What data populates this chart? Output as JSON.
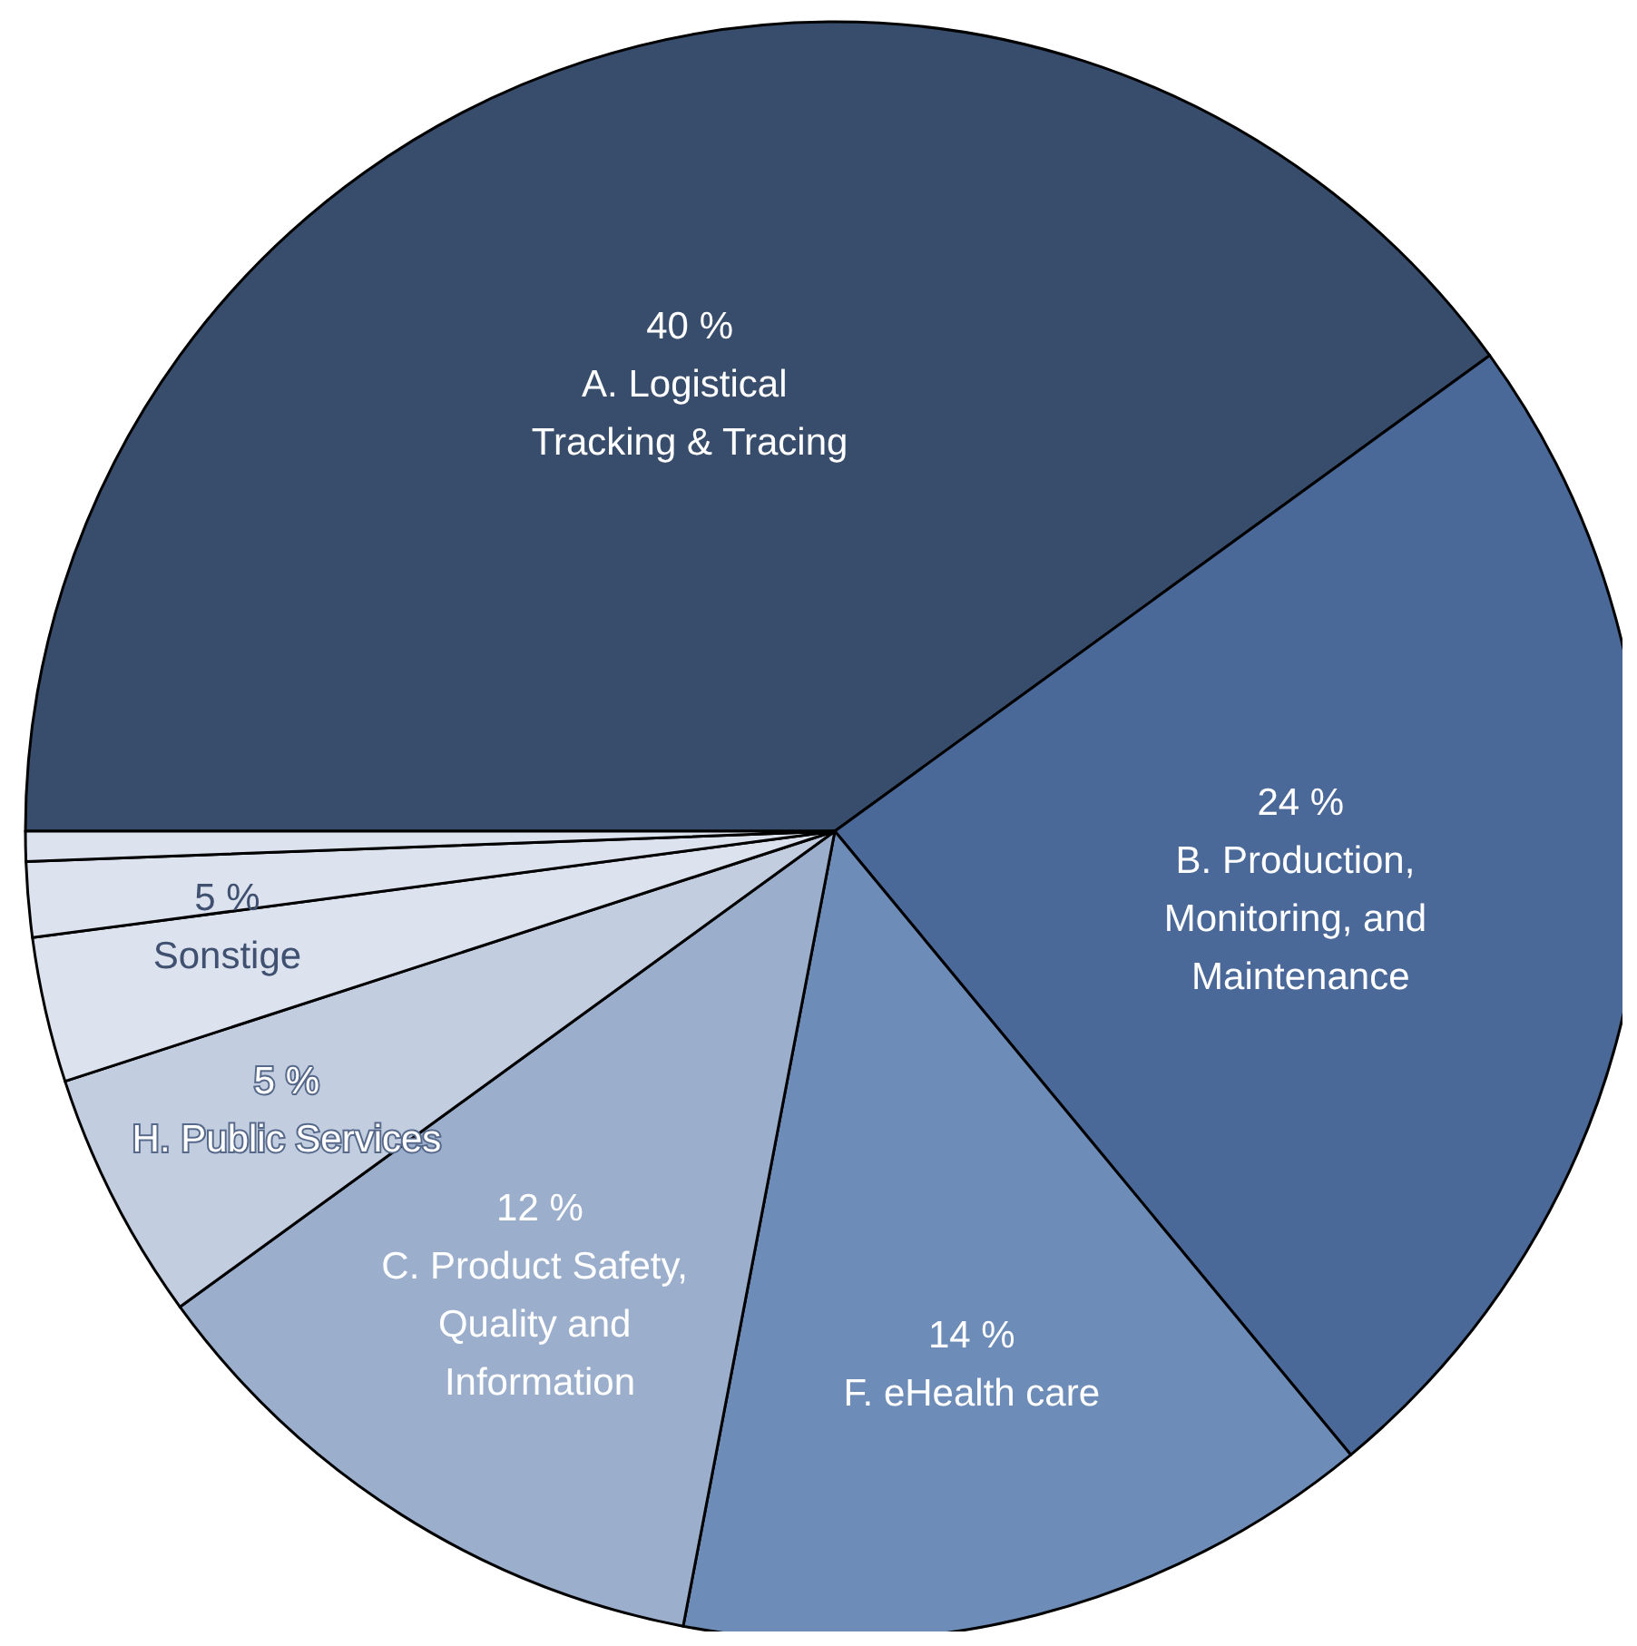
{
  "chart_data": {
    "type": "pie",
    "categories": [
      "A. Logistical Tracking & Tracing",
      "B. Production, Monitoring, and Maintenance",
      "F. eHealth care",
      "C. Product Safety, Quality and Information",
      "H. Public Services",
      null,
      null,
      null
    ],
    "values": [
      40,
      24,
      14,
      12,
      5,
      2.9,
      1.5,
      0.6
    ],
    "value_labels": [
      "40 %",
      "24 %",
      "14 %",
      "12 %",
      "5 %",
      null,
      null,
      null
    ],
    "colors": [
      "#384c6c",
      "#4a6898",
      "#6d8cb8",
      "#9bafcd",
      "#c2cde0",
      "#dce3ee",
      "#dce3ee",
      "#dce3ee"
    ],
    "annotations": [
      "5 %\nSonstige"
    ],
    "legend": false
  }
}
